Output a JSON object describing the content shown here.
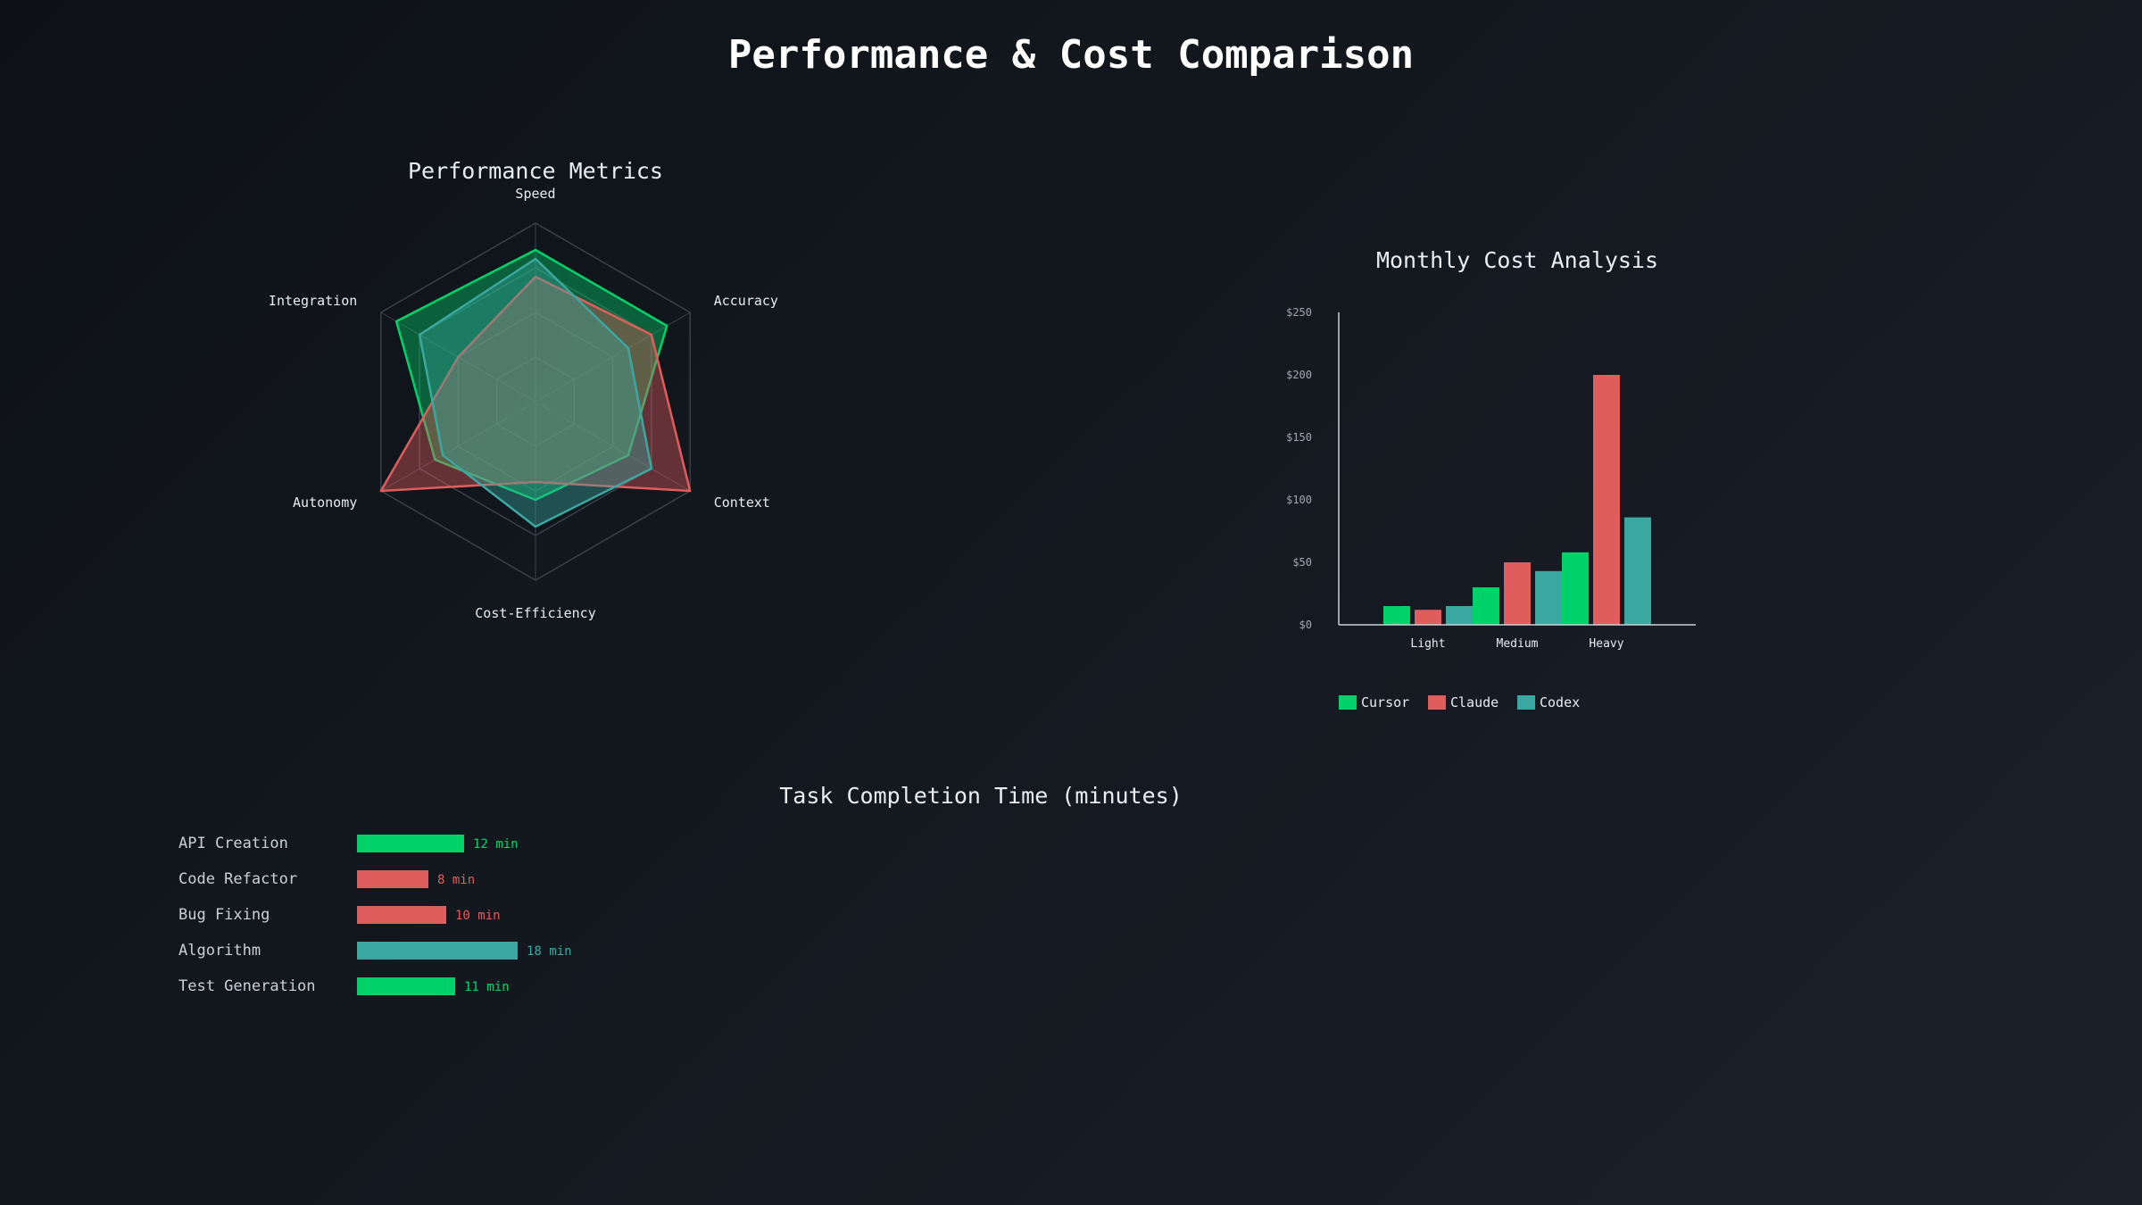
{
  "title": "Performance & Cost Comparison",
  "colors": {
    "cursor": "#00d26a",
    "claude": "#e05d5d",
    "codex": "#3aa8a0",
    "grid": "#3a404a",
    "axis": "#c9d1d9",
    "text": "#e6edf3"
  },
  "chart_data": [
    {
      "type": "radar",
      "title": "Performance Metrics",
      "axes": [
        "Speed",
        "Accuracy",
        "Context",
        "Cost-Efficiency",
        "Autonomy",
        "Integration"
      ],
      "max": 100,
      "series": [
        {
          "name": "Cursor",
          "color": "#00d26a",
          "values": [
            85,
            85,
            60,
            55,
            65,
            90
          ]
        },
        {
          "name": "Claude",
          "color": "#e05d5d",
          "values": [
            70,
            75,
            100,
            45,
            100,
            50
          ]
        },
        {
          "name": "Codex",
          "color": "#3aa8a0",
          "values": [
            80,
            60,
            75,
            70,
            60,
            75
          ]
        }
      ]
    },
    {
      "type": "bar",
      "title": "Monthly Cost Analysis",
      "categories": [
        "Light",
        "Medium",
        "Heavy"
      ],
      "ylim": [
        0,
        250
      ],
      "yticks": [
        0,
        50,
        100,
        150,
        200,
        250
      ],
      "ytick_labels": [
        "$0",
        "$50",
        "$100",
        "$150",
        "$200",
        "$250"
      ],
      "legend": "bottom",
      "series": [
        {
          "name": "Cursor",
          "color": "#00d26a",
          "values": [
            15,
            30,
            58
          ]
        },
        {
          "name": "Claude",
          "color": "#e05d5d",
          "values": [
            12,
            50,
            200
          ]
        },
        {
          "name": "Codex",
          "color": "#3aa8a0",
          "values": [
            15,
            43,
            86
          ]
        }
      ]
    },
    {
      "type": "bar",
      "orientation": "horizontal",
      "title": "Task Completion Time (minutes)",
      "xlim": [
        0,
        18
      ],
      "items": [
        {
          "label": "API Creation",
          "value": 12,
          "value_label": "12 min",
          "color": "#00d26a"
        },
        {
          "label": "Code Refactor",
          "value": 8,
          "value_label": "8 min",
          "color": "#e05d5d"
        },
        {
          "label": "Bug Fixing",
          "value": 10,
          "value_label": "10 min",
          "color": "#e05d5d"
        },
        {
          "label": "Algorithm",
          "value": 18,
          "value_label": "18 min",
          "color": "#3aa8a0"
        },
        {
          "label": "Test Generation",
          "value": 11,
          "value_label": "11 min",
          "color": "#00d26a"
        }
      ]
    }
  ]
}
